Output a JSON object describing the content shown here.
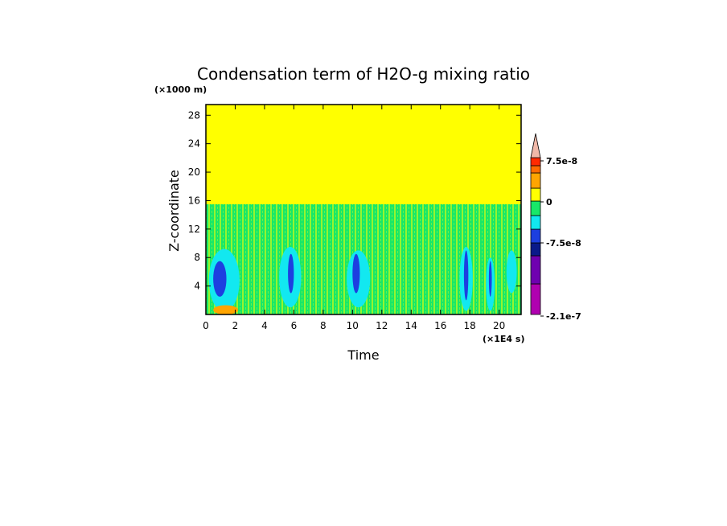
{
  "chart_data": {
    "type": "heatmap",
    "title": "Condensation term of H2O-g mixing ratio",
    "xlabel": "Time",
    "ylabel": "Z-coordinate",
    "x_unit": "(×1E4 s)",
    "y_unit": "(×1000 m)",
    "xlim": [
      0,
      21.5
    ],
    "ylim": [
      0,
      29.5
    ],
    "xticks": [
      "0",
      "2",
      "4",
      "6",
      "8",
      "10",
      "12",
      "14",
      "16",
      "18",
      "20"
    ],
    "yticks": [
      "4",
      "8",
      "12",
      "16",
      "20",
      "24",
      "28"
    ],
    "colorbar": {
      "colors": [
        "#b000b0",
        "#6f00b0",
        "#0a1a8a",
        "#1d3fe0",
        "#12e8f0",
        "#18e868",
        "#ffff00",
        "#ffa500",
        "#ff6a00",
        "#ff2a00",
        "#f0b8a8"
      ],
      "labels": [
        "7.5e-8",
        "0",
        "-7.5e-8",
        "-2.1e-7"
      ],
      "extend": "max"
    },
    "regions": [
      {
        "kind": "background",
        "level": "0",
        "x": [
          0,
          21.5
        ],
        "y": [
          0,
          29.5
        ]
      },
      {
        "kind": "band",
        "level": "-1",
        "x": [
          0,
          21.5
        ],
        "y": [
          0,
          15.5
        ]
      },
      {
        "kind": "cluster",
        "level": "-2",
        "x": [
          0.2,
          2.3
        ],
        "y": [
          0.4,
          9.2
        ]
      },
      {
        "kind": "cluster",
        "level": "-3",
        "x": [
          0.5,
          1.4
        ],
        "y": [
          2.5,
          7.5
        ]
      },
      {
        "kind": "cluster",
        "level": "-2",
        "x": [
          5.0,
          6.5
        ],
        "y": [
          1.0,
          9.5
        ]
      },
      {
        "kind": "cluster",
        "level": "-3",
        "x": [
          5.6,
          6.0
        ],
        "y": [
          3.0,
          8.5
        ]
      },
      {
        "kind": "cluster",
        "level": "-2",
        "x": [
          9.6,
          11.2
        ],
        "y": [
          1.0,
          9.0
        ]
      },
      {
        "kind": "cluster",
        "level": "-3",
        "x": [
          10.0,
          10.5
        ],
        "y": [
          3.0,
          8.5
        ]
      },
      {
        "kind": "cluster",
        "level": "-2",
        "x": [
          17.3,
          18.2
        ],
        "y": [
          0.5,
          9.5
        ]
      },
      {
        "kind": "cluster",
        "level": "-3",
        "x": [
          17.6,
          17.9
        ],
        "y": [
          2.0,
          9.0
        ]
      },
      {
        "kind": "cluster",
        "level": "-2",
        "x": [
          19.1,
          19.7
        ],
        "y": [
          0.5,
          8.0
        ]
      },
      {
        "kind": "cluster",
        "level": "-3",
        "x": [
          19.3,
          19.5
        ],
        "y": [
          2.5,
          7.5
        ]
      },
      {
        "kind": "cluster",
        "level": "-2",
        "x": [
          20.5,
          21.2
        ],
        "y": [
          3.0,
          9.0
        ]
      },
      {
        "kind": "cluster",
        "level": "1",
        "x": [
          0.5,
          2.2
        ],
        "y": [
          0.0,
          1.3
        ]
      }
    ]
  }
}
